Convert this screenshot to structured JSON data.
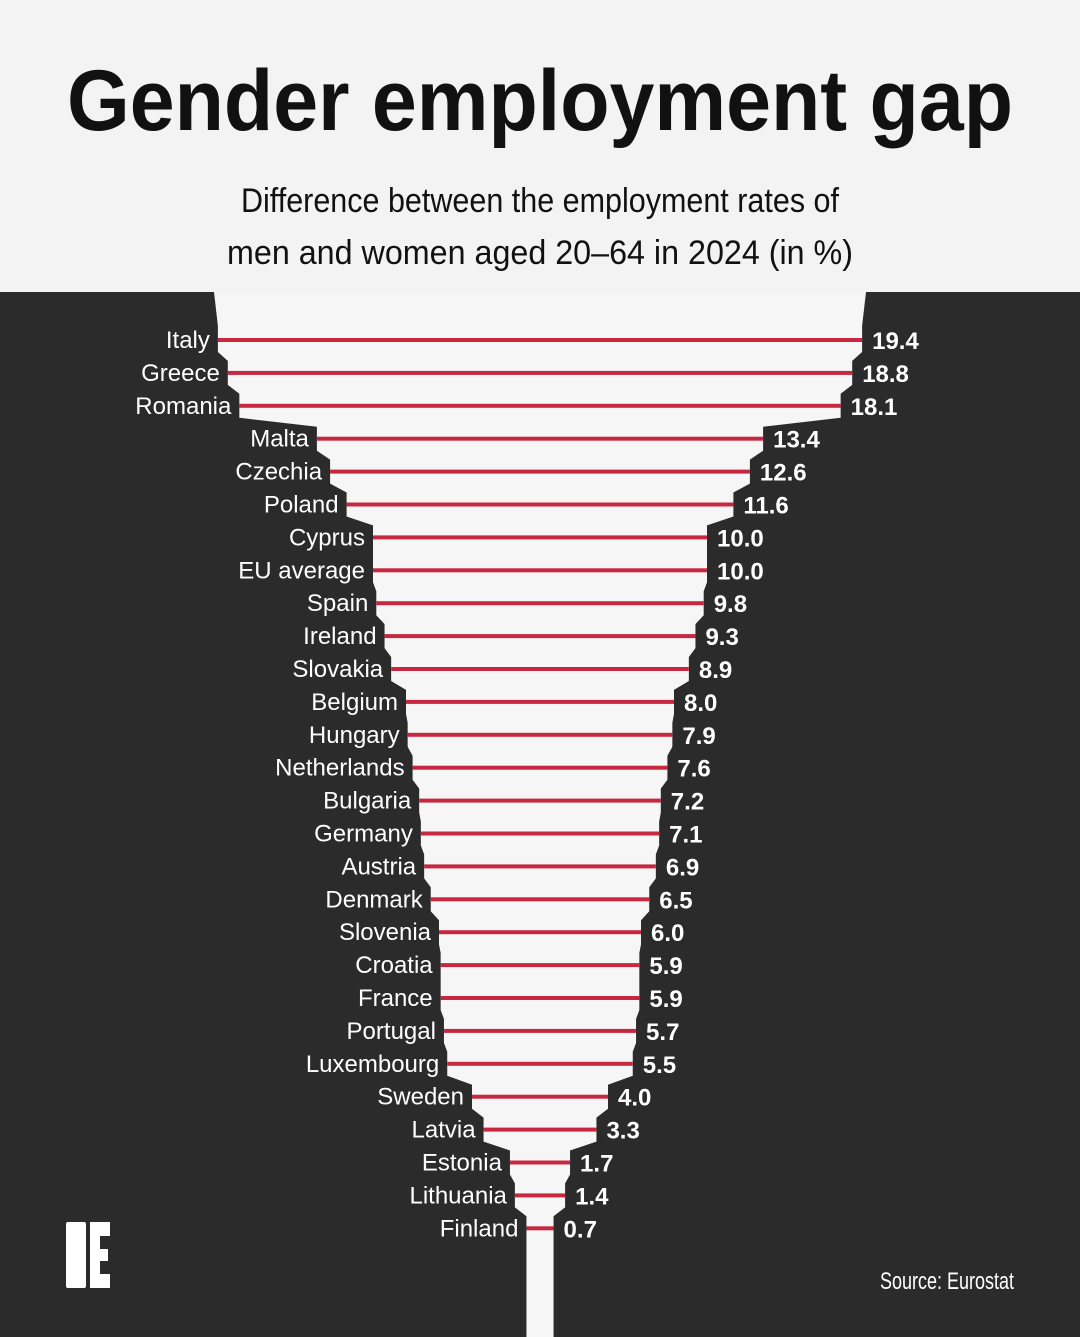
{
  "title": "Gender employment gap",
  "subtitle_lines": [
    "Difference between the employment rates of",
    "men and women aged 20–64 in 2024 (in %)"
  ],
  "source": "Source: Eurostat",
  "logo_letter": "E",
  "colors": {
    "background": "#f3f3f3",
    "dark": "#2b2b2b",
    "funnel": "#f6f6f6",
    "bar": "#c8283f",
    "text_dark": "#111111",
    "text_light": "#ffffff"
  },
  "chart_data": {
    "type": "bar",
    "orientation": "horizontal",
    "unit": "%",
    "title": "Gender employment gap",
    "categories": [
      "Italy",
      "Greece",
      "Romania",
      "Malta",
      "Czechia",
      "Poland",
      "Cyprus",
      "EU average",
      "Spain",
      "Ireland",
      "Slovakia",
      "Belgium",
      "Hungary",
      "Netherlands",
      "Bulgaria",
      "Germany",
      "Austria",
      "Denmark",
      "Slovenia",
      "Croatia",
      "France",
      "Portugal",
      "Luxembourg",
      "Sweden",
      "Latvia",
      "Estonia",
      "Lithuania",
      "Finland"
    ],
    "values": [
      19.4,
      18.8,
      18.1,
      13.4,
      12.6,
      11.6,
      10.0,
      10.0,
      9.8,
      9.3,
      8.9,
      8.0,
      7.9,
      7.6,
      7.2,
      7.1,
      6.9,
      6.5,
      6.0,
      5.9,
      5.9,
      5.7,
      5.5,
      4.0,
      3.3,
      1.7,
      1.4,
      0.7
    ],
    "value_labels": [
      "19.4",
      "18.8",
      "18.1",
      "13.4",
      "12.6",
      "11.6",
      "10.0",
      "10.0",
      "9.8",
      "9.3",
      "8.9",
      "8.0",
      "7.9",
      "7.6",
      "7.2",
      "7.1",
      "6.9",
      "6.5",
      "6.0",
      "5.9",
      "5.9",
      "5.7",
      "5.5",
      "4.0",
      "3.3",
      "1.7",
      "1.4",
      "0.7"
    ]
  }
}
